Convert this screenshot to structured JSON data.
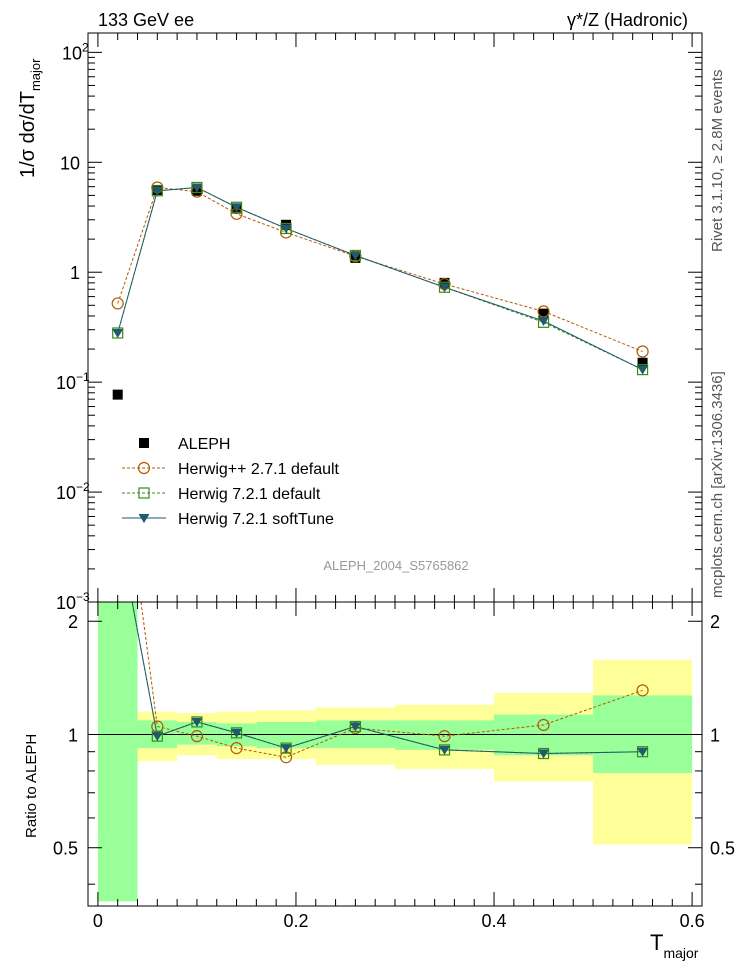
{
  "header": {
    "left": "133 GeV ee",
    "right": "γ*/Z (Hadronic)"
  },
  "side_text": {
    "rivet": "Rivet 3.1.10, ≥ 2.8M events",
    "mcplots": "mcplots.cern.ch [arXiv:1306.3436]"
  },
  "watermark": "ALEPH_2004_S5765862",
  "colors": {
    "data": "#000000",
    "herwigpp": "#b35a00",
    "herwig721": "#3a8a1a",
    "softtune": "#1f5a6e",
    "band_stat": "#99ff99",
    "band_total": "#ffff99"
  },
  "chart_data": [
    {
      "type": "scatter",
      "panel": "main",
      "ylabel_main": "1/σ dσ/dT",
      "ylabel_sub": "major",
      "xlabel_main": "T",
      "xlabel_sub": "major",
      "xlim": [
        -0.01,
        0.61
      ],
      "ylim": [
        0.001,
        150
      ],
      "y_scale": "log",
      "y_ticks": [
        {
          "v": 100,
          "m": "10",
          "e": "2"
        },
        {
          "v": 10,
          "m": "10",
          "e": ""
        },
        {
          "v": 1,
          "m": "1",
          "e": ""
        },
        {
          "v": 0.1,
          "m": "10",
          "e": "−1"
        },
        {
          "v": 0.01,
          "m": "10",
          "e": "−2"
        },
        {
          "v": 0.001,
          "m": "10",
          "e": "−3"
        }
      ],
      "x_ticks": [
        "0",
        "0.2",
        "0.4",
        "0.6"
      ],
      "legend_position": "bottom-left",
      "series": [
        {
          "name": "ALEPH",
          "key": "data",
          "style": "square",
          "x": [
            0.02,
            0.06,
            0.1,
            0.14,
            0.19,
            0.26,
            0.35,
            0.45,
            0.55
          ],
          "y": [
            0.077,
            5.6,
            5.5,
            3.8,
            2.7,
            1.35,
            0.8,
            0.42,
            0.15
          ]
        },
        {
          "name": "Herwig++ 2.7.1 default",
          "key": "herwigpp",
          "style": "circle",
          "x": [
            0.02,
            0.06,
            0.1,
            0.14,
            0.19,
            0.26,
            0.35,
            0.45,
            0.55
          ],
          "y": [
            0.52,
            5.9,
            5.4,
            3.4,
            2.3,
            1.4,
            0.78,
            0.44,
            0.19
          ]
        },
        {
          "name": "Herwig 7.2.1 default",
          "key": "herwig721",
          "style": "open-square",
          "x": [
            0.02,
            0.06,
            0.1,
            0.14,
            0.19,
            0.26,
            0.35,
            0.45,
            0.55
          ],
          "y": [
            0.28,
            5.5,
            5.9,
            3.9,
            2.5,
            1.42,
            0.73,
            0.35,
            0.13
          ]
        },
        {
          "name": "Herwig 7.2.1 softTune",
          "key": "softtune",
          "style": "triangle",
          "x": [
            0.02,
            0.06,
            0.1,
            0.14,
            0.19,
            0.26,
            0.35,
            0.45,
            0.55
          ],
          "y": [
            0.28,
            5.5,
            5.9,
            3.9,
            2.5,
            1.42,
            0.73,
            0.36,
            0.13
          ]
        }
      ]
    },
    {
      "type": "line",
      "panel": "ratio",
      "ylabel": "Ratio to ALEPH",
      "ylim": [
        0.35,
        2.25
      ],
      "y_scale": "log",
      "y_ticks": [
        "0.5",
        "1",
        "2"
      ],
      "bins": [
        [
          0.0,
          0.04
        ],
        [
          0.04,
          0.08
        ],
        [
          0.08,
          0.12
        ],
        [
          0.12,
          0.16
        ],
        [
          0.16,
          0.22
        ],
        [
          0.22,
          0.3
        ],
        [
          0.3,
          0.4
        ],
        [
          0.4,
          0.5
        ],
        [
          0.5,
          0.6
        ]
      ],
      "band_stat": [
        [
          0.36,
          2.25
        ],
        [
          0.92,
          1.09
        ],
        [
          0.94,
          1.08
        ],
        [
          0.93,
          1.07
        ],
        [
          0.92,
          1.08
        ],
        [
          0.92,
          1.09
        ],
        [
          0.91,
          1.09
        ],
        [
          0.88,
          1.13
        ],
        [
          0.79,
          1.27
        ]
      ],
      "band_total": [
        [
          0.36,
          2.25
        ],
        [
          0.85,
          1.15
        ],
        [
          0.88,
          1.14
        ],
        [
          0.86,
          1.15
        ],
        [
          0.86,
          1.16
        ],
        [
          0.83,
          1.18
        ],
        [
          0.81,
          1.2
        ],
        [
          0.75,
          1.29
        ],
        [
          0.51,
          1.58
        ]
      ],
      "series": [
        {
          "key": "herwigpp",
          "style": "circle",
          "dash": true,
          "x": [
            0.02,
            0.06,
            0.1,
            0.14,
            0.19,
            0.26,
            0.35,
            0.45,
            0.55
          ],
          "y": [
            6.7,
            1.05,
            0.99,
            0.92,
            0.87,
            1.04,
            0.99,
            1.06,
            1.31
          ]
        },
        {
          "key": "herwig721",
          "style": "open-square",
          "dash": true,
          "x": [
            0.02,
            0.06,
            0.1,
            0.14,
            0.19,
            0.26,
            0.35,
            0.45,
            0.55
          ],
          "y": [
            3.6,
            0.99,
            1.08,
            1.01,
            0.92,
            1.05,
            0.91,
            0.89,
            0.9
          ]
        },
        {
          "key": "softtune",
          "style": "triangle",
          "dash": false,
          "x": [
            0.02,
            0.06,
            0.1,
            0.14,
            0.19,
            0.26,
            0.35,
            0.45,
            0.55
          ],
          "y": [
            3.6,
            0.99,
            1.08,
            1.01,
            0.92,
            1.05,
            0.91,
            0.89,
            0.9
          ]
        }
      ]
    }
  ]
}
